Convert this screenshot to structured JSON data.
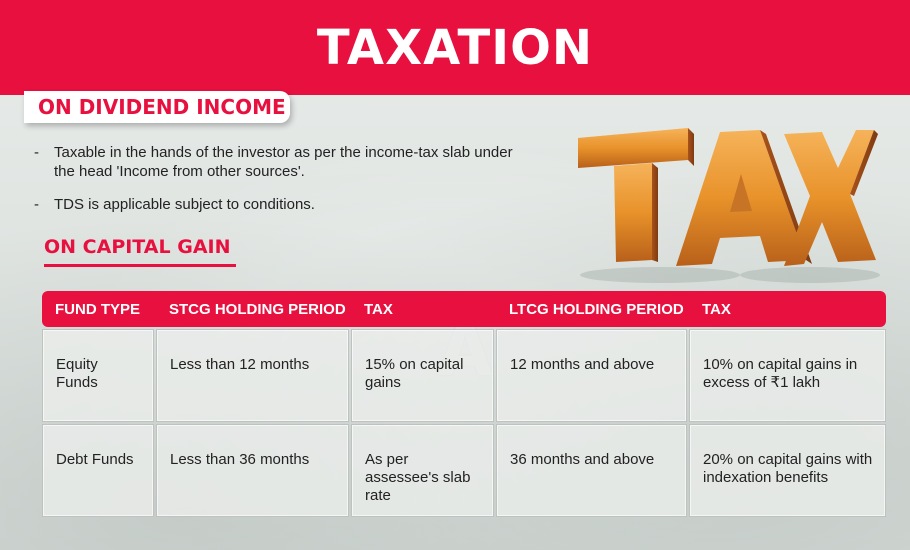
{
  "title": "TAXATION",
  "dividend": {
    "heading": "ON DIVIDEND INCOME",
    "bullets": [
      "Taxable in the hands of the investor as per the income-tax slab under the head 'Income from other sources'.",
      "TDS is applicable subject to conditions."
    ],
    "bullet_marker": "-"
  },
  "capital_gain": {
    "heading": "ON CAPITAL GAIN",
    "columns": [
      "FUND TYPE",
      "STCG HOLDING PERIOD",
      "TAX",
      "LTCG HOLDING PERIOD",
      "TAX"
    ],
    "rows": [
      [
        "Equity Funds",
        "Less than 12 months",
        "15% on capital gains",
        "12 months and above",
        "10% on capital gains in excess of ₹1 lakh"
      ],
      [
        "Debt Funds",
        "Less than 36 months",
        "As per assessee's slab rate",
        "36 months and above",
        "20% on capital gains with indexation benefits"
      ]
    ]
  },
  "illustration": {
    "text": "TAX",
    "color": "#e8922a"
  },
  "colors": {
    "accent": "#e8103f",
    "background": "#e2e6e3"
  }
}
